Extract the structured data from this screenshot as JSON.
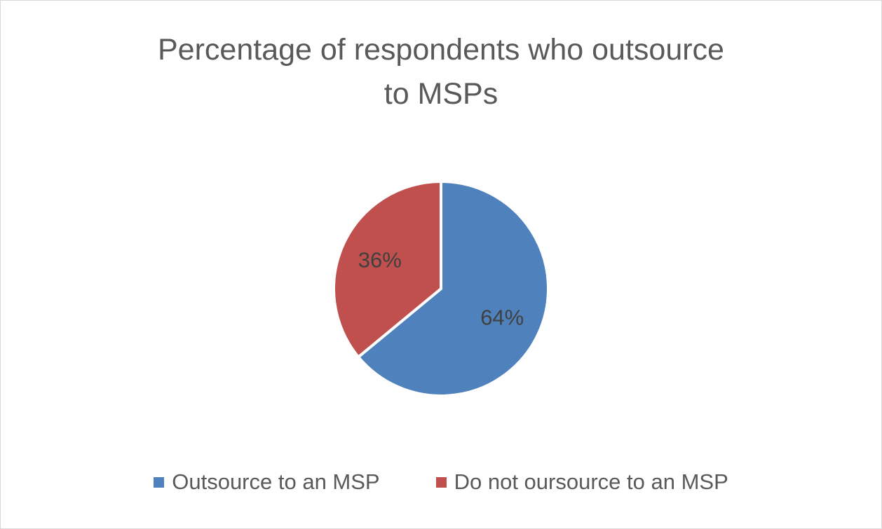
{
  "chart_data": {
    "type": "pie",
    "title_lines": [
      "Percentage of respondents who outsource",
      "to MSPs"
    ],
    "categories": [
      "Outsource to an MSP",
      "Do not oursource to an MSP"
    ],
    "values": [
      64,
      36
    ],
    "data_labels": [
      "64%",
      "36%"
    ],
    "colors": [
      "#4f81bd",
      "#c0504d"
    ],
    "legend_position": "bottom",
    "start_angle": "12 o'clock, clockwise"
  },
  "legend": {
    "items": [
      {
        "label": "Outsource to an MSP",
        "color": "#4f81bd"
      },
      {
        "label": "Do not oursource to an MSP",
        "color": "#c0504d"
      }
    ]
  }
}
